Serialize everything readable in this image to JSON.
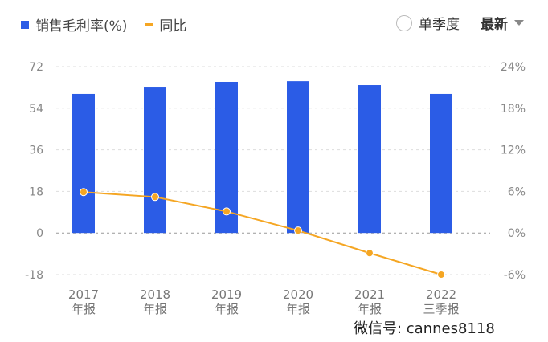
{
  "legend": {
    "bar_label": "销售毛利率(%)",
    "line_label": "同比"
  },
  "controls": {
    "single_quarter": "单季度",
    "latest": "最新"
  },
  "watermark": "微信号: cannes8118",
  "colors": {
    "bar": "#2b5ce6",
    "line": "#f5a623"
  },
  "chart_data": {
    "type": "bar+line",
    "categories": [
      [
        "2017",
        "年报"
      ],
      [
        "2018",
        "年报"
      ],
      [
        "2019",
        "年报"
      ],
      [
        "2020",
        "年报"
      ],
      [
        "2021",
        "年报"
      ],
      [
        "2022",
        "三季报"
      ]
    ],
    "series": [
      {
        "name": "销售毛利率(%)",
        "type": "bar",
        "axis": "left",
        "values": [
          60.2,
          63.3,
          65.4,
          65.7,
          64.0,
          60.2
        ]
      },
      {
        "name": "同比",
        "type": "line",
        "axis": "right",
        "values": [
          5.9,
          5.2,
          3.1,
          0.35,
          -2.9,
          -6.0
        ]
      }
    ],
    "left_axis": {
      "ticks": [
        "72",
        "54",
        "36",
        "18",
        "0",
        "-18"
      ],
      "values": [
        72,
        54,
        36,
        18,
        0,
        -18
      ],
      "ylim": [
        -18,
        72
      ]
    },
    "right_axis": {
      "ticks": [
        "24%",
        "18%",
        "12%",
        "6%",
        "0%",
        "-6%"
      ],
      "values": [
        24,
        18,
        12,
        6,
        0,
        -6
      ],
      "ylim": [
        -6,
        24
      ]
    },
    "grid": "horizontal dashed"
  }
}
